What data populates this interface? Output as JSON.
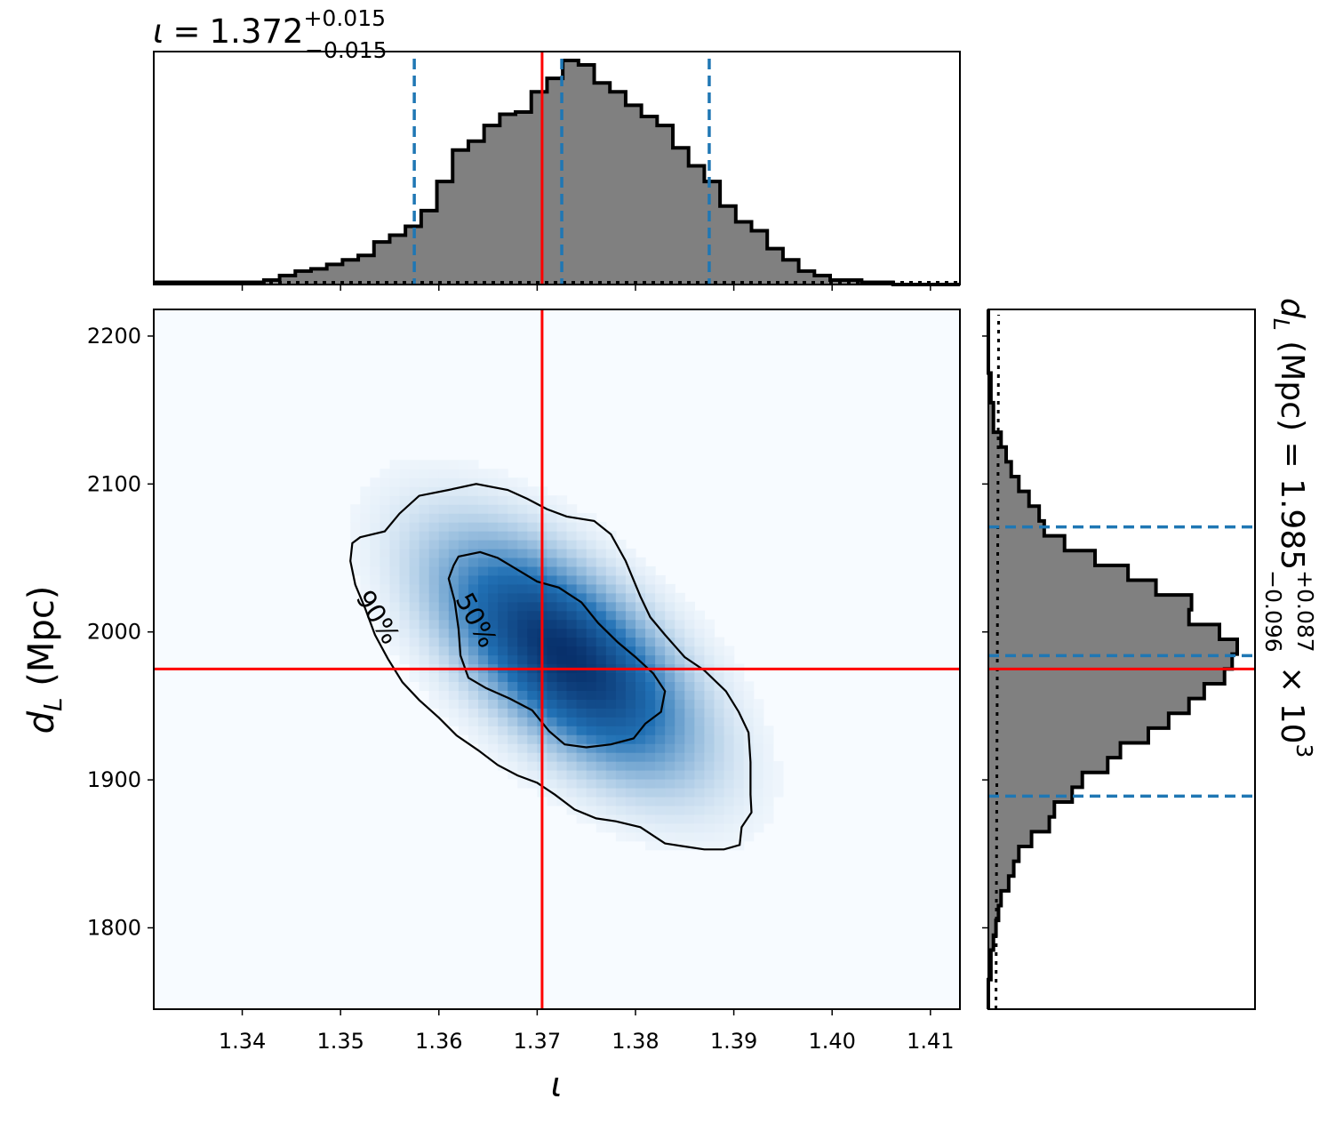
{
  "chart_data": [
    {
      "type": "histogram",
      "panel": "top-marginal",
      "title": {
        "symbol": "ι",
        "equals": "=",
        "value": "1.372",
        "plus": "+0.015",
        "minus": "−0.015"
      },
      "xlim": [
        1.331,
        1.413
      ],
      "x_ticks": [
        1.34,
        1.35,
        1.36,
        1.37,
        1.38,
        1.39,
        1.4,
        1.41
      ],
      "bins": {
        "edges": [
          1.331,
          1.3326,
          1.3342,
          1.3358,
          1.3374,
          1.339,
          1.3406,
          1.3422,
          1.3438,
          1.3454,
          1.347,
          1.3486,
          1.3502,
          1.3518,
          1.3534,
          1.355,
          1.3566,
          1.3582,
          1.3598,
          1.3614,
          1.363,
          1.3646,
          1.3662,
          1.3678,
          1.3694,
          1.371,
          1.3726,
          1.3742,
          1.3758,
          1.3774,
          1.379,
          1.3806,
          1.3822,
          1.3838,
          1.3854,
          1.387,
          1.3886,
          1.3902,
          1.3918,
          1.3934,
          1.395,
          1.3966,
          1.3982,
          1.3998,
          1.4014,
          1.403,
          1.4046,
          1.4062,
          1.4078,
          1.4094,
          1.411,
          1.413
        ],
        "counts": [
          0.01,
          0.01,
          0.01,
          0.01,
          0.01,
          0.01,
          0.01,
          0.02,
          0.04,
          0.06,
          0.07,
          0.09,
          0.11,
          0.13,
          0.19,
          0.22,
          0.26,
          0.33,
          0.46,
          0.6,
          0.64,
          0.71,
          0.76,
          0.77,
          0.86,
          0.92,
          1.0,
          0.98,
          0.9,
          0.86,
          0.8,
          0.75,
          0.71,
          0.61,
          0.53,
          0.46,
          0.35,
          0.28,
          0.24,
          0.16,
          0.11,
          0.06,
          0.04,
          0.02,
          0.02,
          0.01,
          0.01,
          0.0,
          0.0,
          0.0,
          0.0
        ]
      },
      "quantile_lines": [
        1.3575,
        1.3725,
        1.3875
      ],
      "truth_line": 1.3705,
      "prior_level": 0.01
    },
    {
      "type": "heatmap",
      "panel": "joint",
      "xlabel": "ι",
      "ylabel": {
        "symbol": "d",
        "subscript": "L",
        "unit": " (Mpc)"
      },
      "xlim": [
        1.331,
        1.413
      ],
      "ylim": [
        1745,
        2218
      ],
      "x_ticks": [
        1.34,
        1.35,
        1.36,
        1.37,
        1.38,
        1.39,
        1.4,
        1.41
      ],
      "y_ticks": [
        1800,
        1900,
        2000,
        2100,
        2200
      ],
      "density_peak": {
        "x": 1.3728,
        "y": 1984
      },
      "contours": [
        {
          "label": "50%",
          "path": [
            [
              1.362,
              2051
            ],
            [
              1.3642,
              2054
            ],
            [
              1.366,
              2050
            ],
            [
              1.368,
              2042
            ],
            [
              1.37,
              2034
            ],
            [
              1.3722,
              2030
            ],
            [
              1.3745,
              2020
            ],
            [
              1.3762,
              2006
            ],
            [
              1.3782,
              1993
            ],
            [
              1.38,
              1983
            ],
            [
              1.3818,
              1972
            ],
            [
              1.383,
              1960
            ],
            [
              1.3826,
              1946
            ],
            [
              1.381,
              1938
            ],
            [
              1.3798,
              1928
            ],
            [
              1.3775,
              1924
            ],
            [
              1.375,
              1922
            ],
            [
              1.3728,
              1924
            ],
            [
              1.3712,
              1933
            ],
            [
              1.3695,
              1947
            ],
            [
              1.3672,
              1955
            ],
            [
              1.3648,
              1962
            ],
            [
              1.363,
              1969
            ],
            [
              1.3622,
              1984
            ],
            [
              1.362,
              2002
            ],
            [
              1.3616,
              2021
            ],
            [
              1.361,
              2036
            ],
            [
              1.3615,
              2045
            ]
          ],
          "label_at": [
            1.3638,
            2008
          ],
          "label_angle": 62
        },
        {
          "label": "90%",
          "path": [
            [
              1.352,
              2064
            ],
            [
              1.3545,
              2068
            ],
            [
              1.356,
              2080
            ],
            [
              1.358,
              2092
            ],
            [
              1.361,
              2096
            ],
            [
              1.3638,
              2100
            ],
            [
              1.367,
              2096
            ],
            [
              1.369,
              2090
            ],
            [
              1.371,
              2083
            ],
            [
              1.373,
              2078
            ],
            [
              1.3758,
              2075
            ],
            [
              1.3775,
              2066
            ],
            [
              1.379,
              2048
            ],
            [
              1.3805,
              2024
            ],
            [
              1.3815,
              2010
            ],
            [
              1.383,
              1998
            ],
            [
              1.385,
              1983
            ],
            [
              1.387,
              1974
            ],
            [
              1.3892,
              1960
            ],
            [
              1.3905,
              1946
            ],
            [
              1.3915,
              1932
            ],
            [
              1.3917,
              1912
            ],
            [
              1.3917,
              1890
            ],
            [
              1.3918,
              1878
            ],
            [
              1.3908,
              1868
            ],
            [
              1.3906,
              1856
            ],
            [
              1.389,
              1853
            ],
            [
              1.387,
              1853
            ],
            [
              1.385,
              1855
            ],
            [
              1.383,
              1857
            ],
            [
              1.3805,
              1868
            ],
            [
              1.378,
              1872
            ],
            [
              1.376,
              1874
            ],
            [
              1.3738,
              1880
            ],
            [
              1.3718,
              1890
            ],
            [
              1.37,
              1898
            ],
            [
              1.368,
              1903
            ],
            [
              1.366,
              1910
            ],
            [
              1.364,
              1920
            ],
            [
              1.3618,
              1930
            ],
            [
              1.36,
              1942
            ],
            [
              1.358,
              1954
            ],
            [
              1.3563,
              1966
            ],
            [
              1.3548,
              1982
            ],
            [
              1.3535,
              1998
            ],
            [
              1.3525,
              2016
            ],
            [
              1.3515,
              2032
            ],
            [
              1.351,
              2048
            ],
            [
              1.3512,
              2060
            ]
          ],
          "label_at": [
            1.3538,
            2010
          ],
          "label_angle": 58
        }
      ],
      "truth_lines": {
        "x": 1.3705,
        "y": 1975
      }
    },
    {
      "type": "histogram",
      "panel": "right-marginal",
      "orientation": "horizontal",
      "title": {
        "symbol": "d",
        "subscript": "L",
        "rest": " (Mpc) = 1.985",
        "plus": "+0.087",
        "minus": "−0.096",
        "times": " × 10",
        "exponent": "3"
      },
      "ylim": [
        1745,
        2218
      ],
      "bins": {
        "edges": [
          1745,
          1755,
          1765,
          1775,
          1785,
          1795,
          1805,
          1815,
          1825,
          1835,
          1845,
          1855,
          1865,
          1875,
          1885,
          1895,
          1905,
          1915,
          1925,
          1935,
          1945,
          1955,
          1965,
          1975,
          1985,
          1995,
          2005,
          2015,
          2025,
          2035,
          2045,
          2055,
          2065,
          2075,
          2085,
          2095,
          2105,
          2115,
          2125,
          2135,
          2145,
          2155,
          2165,
          2175,
          2185,
          2195,
          2205,
          2218
        ],
        "counts": [
          0.0,
          0.0,
          0.01,
          0.01,
          0.02,
          0.03,
          0.04,
          0.05,
          0.08,
          0.1,
          0.12,
          0.17,
          0.24,
          0.26,
          0.33,
          0.37,
          0.47,
          0.52,
          0.63,
          0.71,
          0.79,
          0.85,
          0.93,
          0.96,
          0.98,
          0.91,
          0.79,
          0.8,
          0.66,
          0.55,
          0.42,
          0.3,
          0.22,
          0.2,
          0.16,
          0.12,
          0.09,
          0.07,
          0.05,
          0.02,
          0.02,
          0.01,
          0.01,
          0.0,
          0.0,
          0.0,
          0.0
        ]
      },
      "quantile_lines": [
        1889,
        1984,
        2071
      ],
      "truth_line": 1975,
      "prior_level": 0.03
    }
  ],
  "colors": {
    "hist_fill": "#808080",
    "hist_edge": "#000000",
    "quantile": "#1f77b4",
    "truth": "#ff0000",
    "prior": "#000000",
    "contour": "#000000",
    "density_low": "#f7fbff",
    "density_high": "#08306b"
  }
}
